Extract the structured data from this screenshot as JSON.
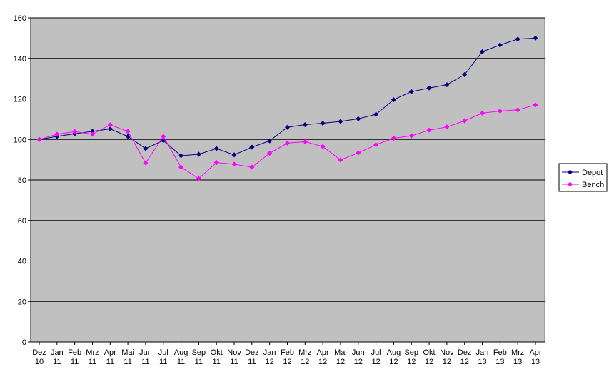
{
  "chart_data": {
    "type": "line",
    "title": "",
    "xlabel": "",
    "ylabel": "",
    "ylim": [
      0,
      160
    ],
    "yticks": [
      0,
      20,
      40,
      60,
      80,
      100,
      120,
      140,
      160
    ],
    "grid": "horizontal",
    "legend_position": "right",
    "plot_background": "#c0c0c0",
    "categories": [
      [
        "Dez",
        "10"
      ],
      [
        "Jan",
        "11"
      ],
      [
        "Feb",
        "11"
      ],
      [
        "Mrz",
        "11"
      ],
      [
        "Apr",
        "11"
      ],
      [
        "Mai",
        "11"
      ],
      [
        "Jun",
        "11"
      ],
      [
        "Jul",
        "11"
      ],
      [
        "Aug",
        "11"
      ],
      [
        "Sep",
        "11"
      ],
      [
        "Okt",
        "11"
      ],
      [
        "Nov",
        "11"
      ],
      [
        "Dez",
        "11"
      ],
      [
        "Jan",
        "12"
      ],
      [
        "Feb",
        "12"
      ],
      [
        "Mrz",
        "12"
      ],
      [
        "Apr",
        "12"
      ],
      [
        "Mai",
        "12"
      ],
      [
        "Jun",
        "12"
      ],
      [
        "Jul",
        "12"
      ],
      [
        "Aug",
        "12"
      ],
      [
        "Sep",
        "12"
      ],
      [
        "Okt",
        "12"
      ],
      [
        "Nov",
        "12"
      ],
      [
        "Dez",
        "12"
      ],
      [
        "Jan",
        "13"
      ],
      [
        "Feb",
        "13"
      ],
      [
        "Mrz",
        "13"
      ],
      [
        "Apr",
        "13"
      ]
    ],
    "series": [
      {
        "name": "Depot",
        "color": "#000080",
        "marker": "diamond",
        "values": [
          100,
          101.5,
          102.8,
          104,
          105.2,
          101.5,
          95.5,
          99.5,
          92,
          92.7,
          95.5,
          92.4,
          96.2,
          99.3,
          106,
          107.3,
          108,
          108.9,
          110.2,
          112.4,
          119.6,
          123.6,
          125.4,
          127,
          132,
          143.3,
          146.6,
          149.5,
          150
        ]
      },
      {
        "name": "Bench",
        "color": "#ff00ff",
        "marker": "diamond",
        "values": [
          100,
          102.6,
          103.9,
          102.6,
          107.2,
          104,
          88.4,
          101.5,
          86.3,
          80.7,
          88.6,
          87.8,
          86.3,
          93.2,
          98.2,
          98.9,
          96.5,
          89.9,
          93.4,
          97.4,
          100.6,
          101.8,
          104.6,
          106.2,
          109.2,
          113,
          114,
          114.6,
          117
        ]
      }
    ]
  }
}
